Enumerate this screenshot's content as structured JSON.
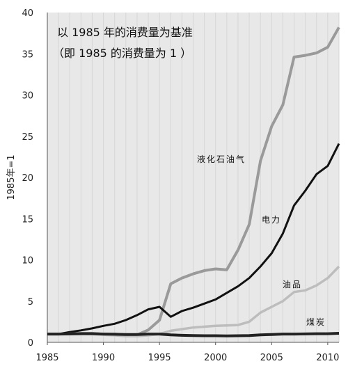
{
  "chart_data": {
    "type": "line",
    "ylabel": "1985年=1",
    "annotation_lines": [
      "以 1985 年的消费量为基准",
      "（即 1985 的消费量为 1 ）"
    ],
    "x": [
      1985,
      1986,
      1987,
      1988,
      1989,
      1990,
      1991,
      1992,
      1993,
      1994,
      1995,
      1996,
      1997,
      1998,
      1999,
      2000,
      2001,
      2002,
      2003,
      2004,
      2005,
      2006,
      2007,
      2008,
      2009,
      2010,
      2011
    ],
    "xlim": [
      1985,
      2011
    ],
    "ylim": [
      0,
      40
    ],
    "x_ticks": [
      "1985",
      "1990",
      "1995",
      "2000",
      "2005",
      "2010"
    ],
    "y_ticks": [
      "0",
      "5",
      "10",
      "15",
      "20",
      "25",
      "30",
      "35",
      "40"
    ],
    "grid": "vertical lines per year",
    "background": "#e8e8e8",
    "series": [
      {
        "name": "液化石油气",
        "color": "#9a9a9a",
        "values": [
          1.0,
          1.0,
          1.05,
          1.1,
          1.1,
          1.0,
          1.0,
          0.9,
          0.9,
          1.5,
          2.7,
          7.1,
          7.8,
          8.3,
          8.7,
          8.9,
          8.8,
          11.2,
          14.3,
          22.0,
          26.2,
          28.8,
          34.6,
          34.8,
          35.1,
          35.8,
          38.2
        ]
      },
      {
        "name": "电力",
        "color": "#111111",
        "values": [
          1.0,
          1.0,
          1.25,
          1.45,
          1.7,
          2.0,
          2.25,
          2.7,
          3.3,
          4.0,
          4.3,
          3.1,
          3.8,
          4.2,
          4.7,
          5.2,
          6.0,
          6.8,
          7.8,
          9.2,
          10.8,
          13.2,
          16.6,
          18.4,
          20.4,
          21.4,
          24.1
        ]
      },
      {
        "name": "油品",
        "color": "#bdbdbd",
        "values": [
          1.0,
          1.0,
          1.05,
          1.05,
          1.0,
          0.9,
          0.85,
          0.75,
          0.75,
          0.85,
          1.0,
          1.4,
          1.6,
          1.8,
          1.9,
          2.0,
          2.05,
          2.1,
          2.5,
          3.6,
          4.3,
          5.0,
          6.1,
          6.3,
          6.9,
          7.8,
          9.2
        ]
      },
      {
        "name": "煤炭",
        "color": "#222222",
        "values": [
          1.0,
          1.0,
          1.02,
          1.05,
          1.05,
          1.0,
          0.98,
          0.95,
          0.95,
          1.0,
          1.0,
          0.9,
          0.85,
          0.82,
          0.8,
          0.8,
          0.78,
          0.8,
          0.82,
          0.9,
          0.95,
          1.0,
          1.0,
          1.02,
          1.05,
          1.05,
          1.1
        ]
      }
    ]
  }
}
